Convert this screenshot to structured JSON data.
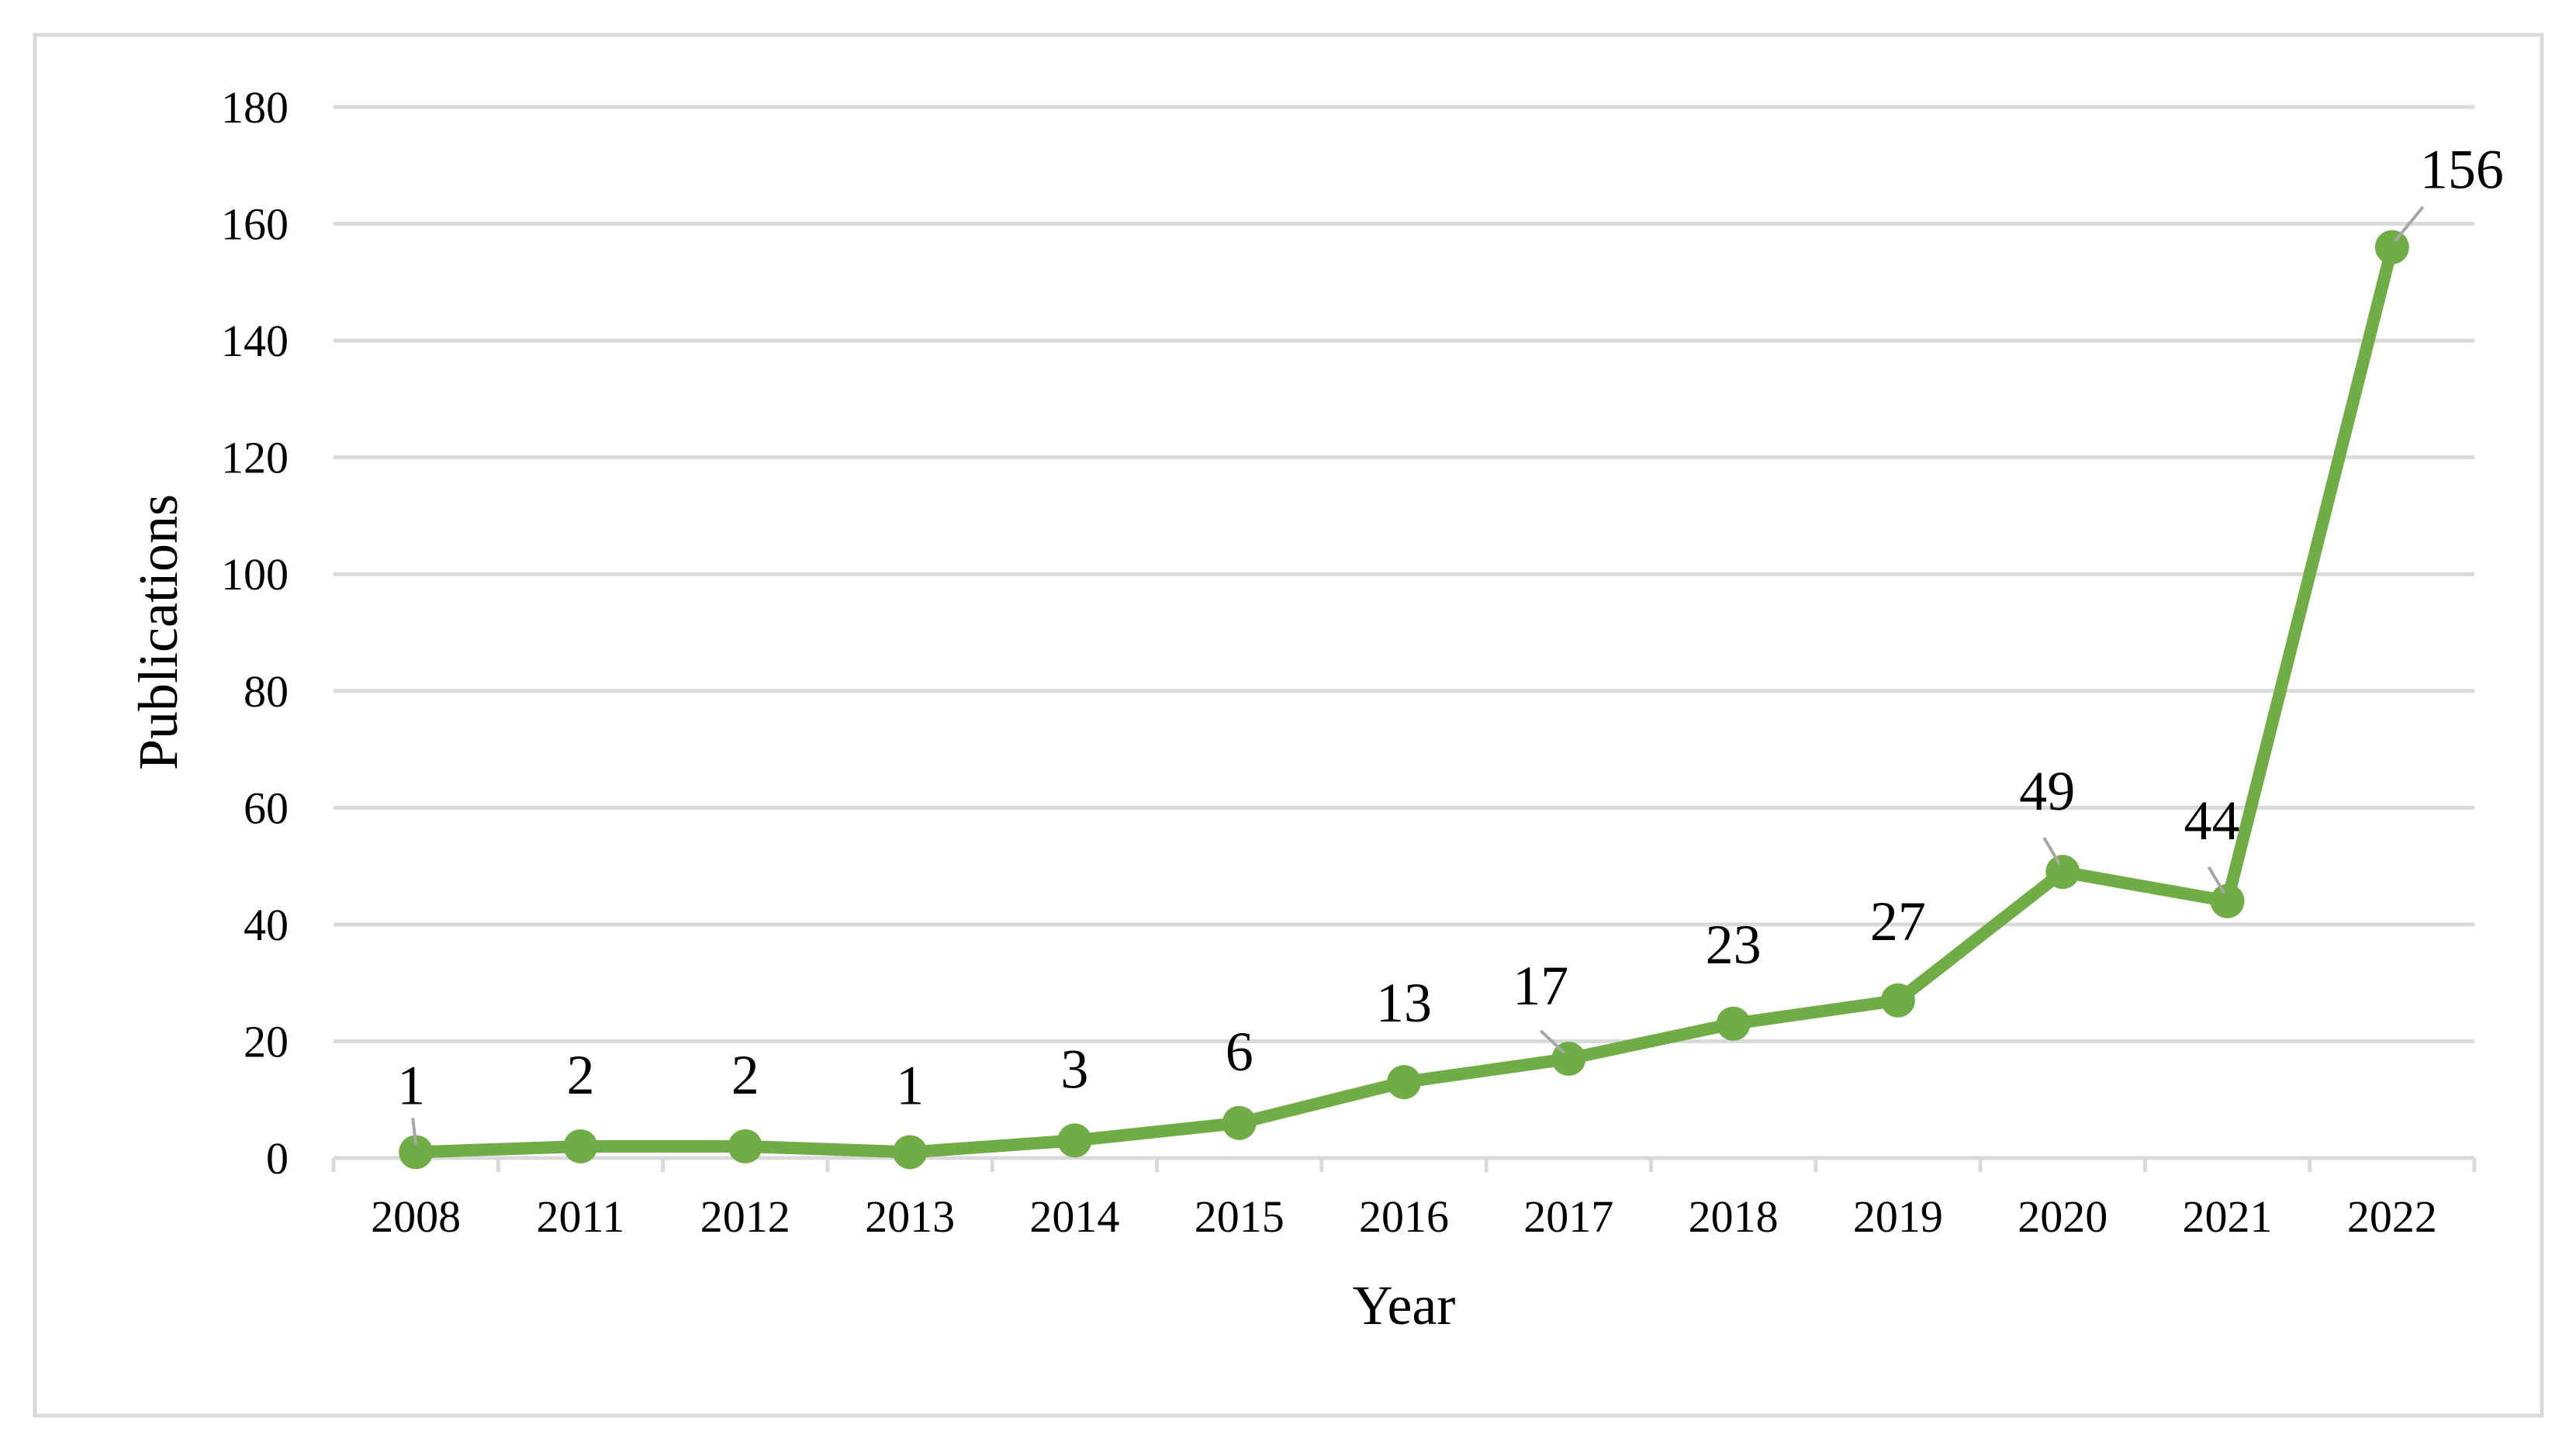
{
  "chart_data": {
    "type": "line",
    "title": "",
    "xlabel": "Year",
    "ylabel": "Publications",
    "categories": [
      "2008",
      "2011",
      "2012",
      "2013",
      "2014",
      "2015",
      "2016",
      "2017",
      "2018",
      "2019",
      "2020",
      "2021",
      "2022"
    ],
    "series": [
      {
        "values": [
          1,
          2,
          2,
          1,
          3,
          6,
          13,
          17,
          23,
          27,
          49,
          44,
          156
        ],
        "color": "#70ad47",
        "data_labels": [
          "1",
          "2",
          "2",
          "1",
          "3",
          "6",
          "13",
          "17",
          "23",
          "27",
          "49",
          "44",
          "156"
        ]
      }
    ],
    "ylim": [
      0,
      180
    ],
    "yticks": [
      "0",
      "20",
      "40",
      "60",
      "80",
      "100",
      "120",
      "140",
      "160",
      "180"
    ],
    "grid": true,
    "legend": "none",
    "colors": {
      "series": "#70ad47",
      "grid": "#d9d9d9",
      "frame": "#d9d9d9",
      "leader": "#a6a6a6",
      "text": "#000000"
    }
  }
}
